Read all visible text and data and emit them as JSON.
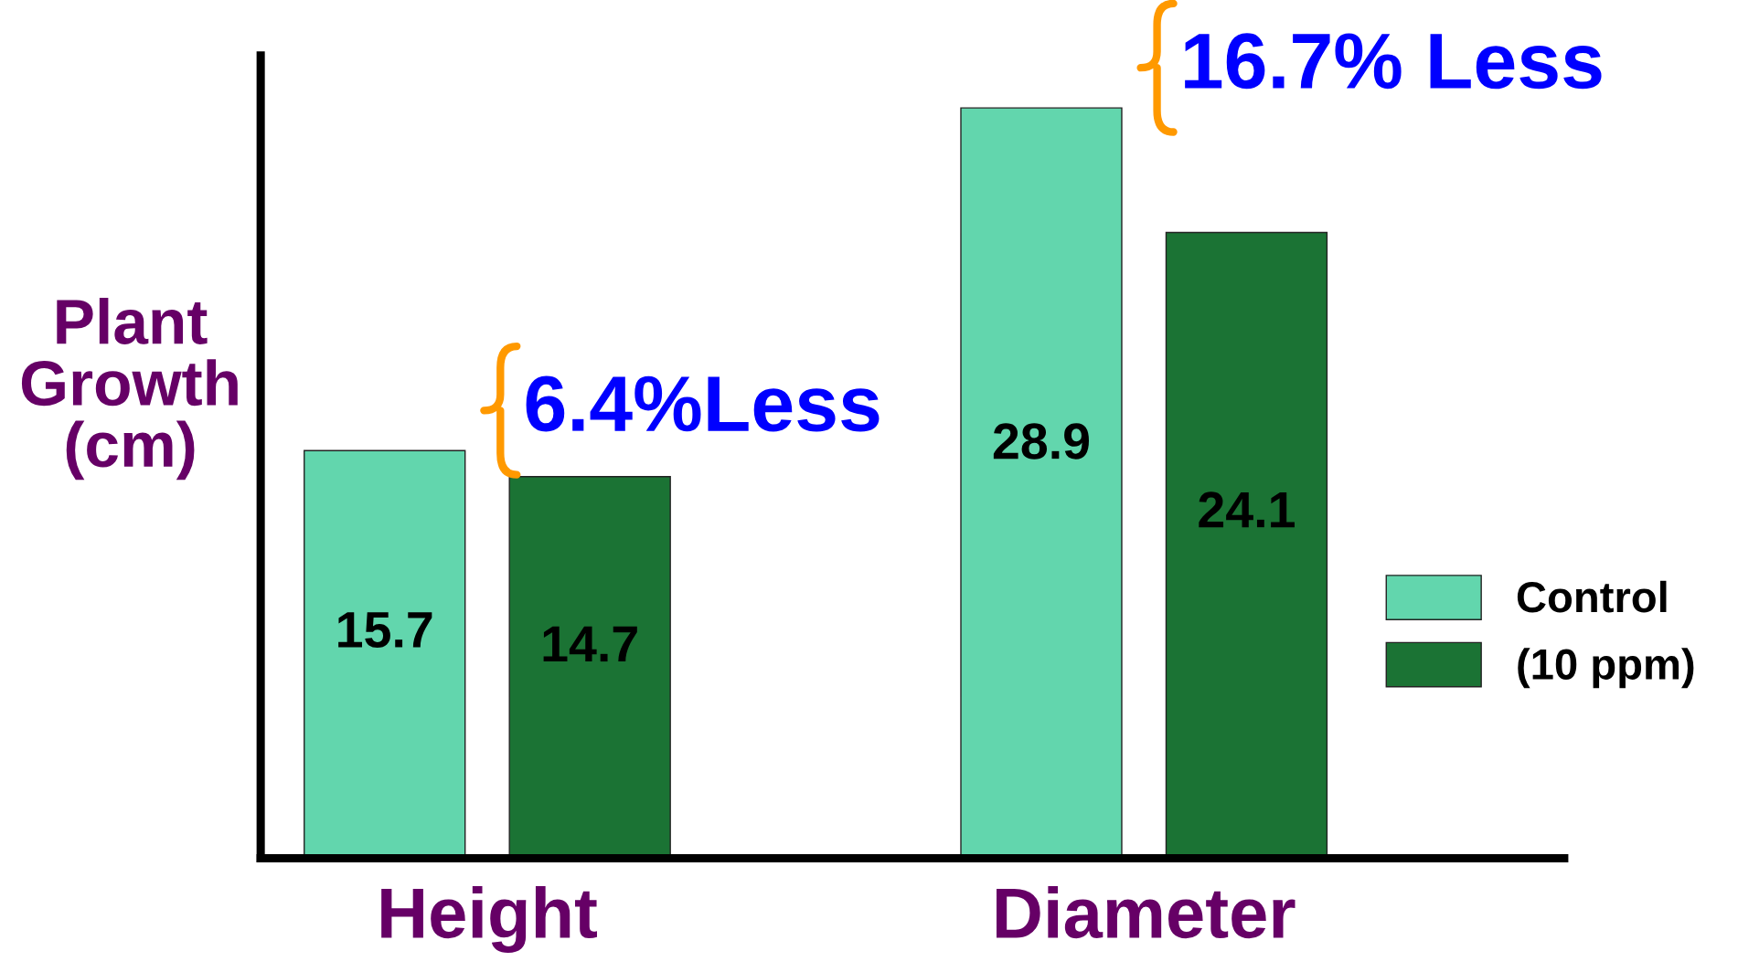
{
  "chart_data": {
    "type": "bar",
    "ylabel": "Plant\nGrowth\n(cm)",
    "categories": [
      "Height",
      "Diameter"
    ],
    "series": [
      {
        "name": "Control",
        "color": "#62d6ad",
        "values": [
          15.7,
          28.9
        ]
      },
      {
        "name": "(10 ppm)",
        "color": "#1b7334",
        "values": [
          14.7,
          24.1
        ]
      }
    ],
    "data_labels": true,
    "legend": "right",
    "tick_labels": "x",
    "grid": false,
    "annotations": [
      "6.4%Less",
      "16.7% Less"
    ]
  }
}
